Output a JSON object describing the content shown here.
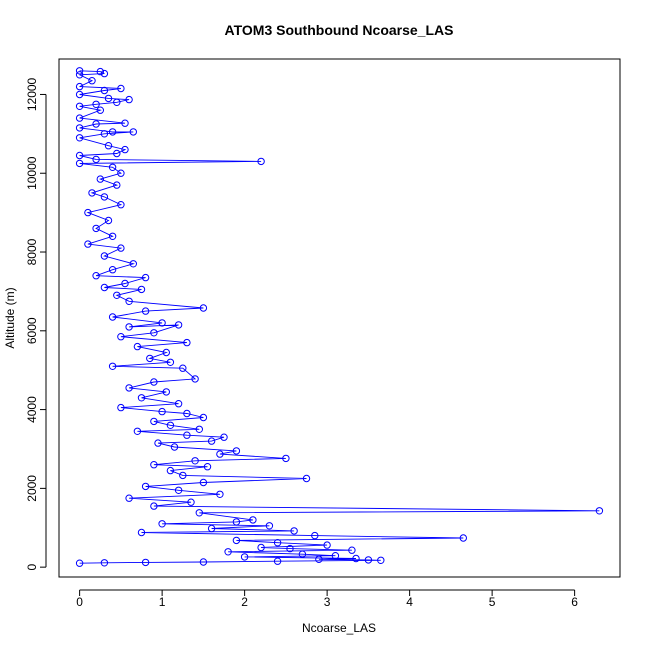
{
  "chart_data": {
    "type": "scatter",
    "title": "ATOM3 Southbound Ncoarse_LAS",
    "xlabel": "Ncoarse_LAS",
    "ylabel": "Altitude (m)",
    "xlim": [
      -0.25,
      6.55
    ],
    "ylim": [
      -250,
      12900
    ],
    "x_ticks": [
      0,
      1,
      2,
      3,
      4,
      5,
      6
    ],
    "y_ticks": [
      0,
      2000,
      4000,
      6000,
      8000,
      10000,
      12000
    ],
    "grid": false,
    "legend": "none",
    "series": [
      {
        "style": "points connected by lines",
        "color": "#0000ff",
        "points": [
          [
            0.0,
            12600
          ],
          [
            0.25,
            12580
          ],
          [
            0.3,
            12530
          ],
          [
            0.0,
            12500
          ],
          [
            0.15,
            12350
          ],
          [
            0.0,
            12200
          ],
          [
            0.5,
            12150
          ],
          [
            0.3,
            12100
          ],
          [
            0.0,
            12000
          ],
          [
            0.35,
            11900
          ],
          [
            0.6,
            11870
          ],
          [
            0.45,
            11800
          ],
          [
            0.2,
            11750
          ],
          [
            0.0,
            11700
          ],
          [
            0.25,
            11600
          ],
          [
            0.0,
            11400
          ],
          [
            0.55,
            11270
          ],
          [
            0.2,
            11250
          ],
          [
            0.0,
            11150
          ],
          [
            0.4,
            11050
          ],
          [
            0.65,
            11050
          ],
          [
            0.3,
            11000
          ],
          [
            0.0,
            10900
          ],
          [
            0.35,
            10700
          ],
          [
            0.55,
            10600
          ],
          [
            0.45,
            10500
          ],
          [
            0.0,
            10450
          ],
          [
            0.2,
            10350
          ],
          [
            2.2,
            10300
          ],
          [
            0.0,
            10250
          ],
          [
            0.4,
            10150
          ],
          [
            0.5,
            10000
          ],
          [
            0.25,
            9850
          ],
          [
            0.45,
            9700
          ],
          [
            0.15,
            9500
          ],
          [
            0.3,
            9400
          ],
          [
            0.5,
            9200
          ],
          [
            0.1,
            9000
          ],
          [
            0.35,
            8800
          ],
          [
            0.2,
            8600
          ],
          [
            0.4,
            8400
          ],
          [
            0.1,
            8200
          ],
          [
            0.5,
            8100
          ],
          [
            0.3,
            7900
          ],
          [
            0.65,
            7700
          ],
          [
            0.4,
            7550
          ],
          [
            0.2,
            7400
          ],
          [
            0.8,
            7350
          ],
          [
            0.55,
            7200
          ],
          [
            0.3,
            7100
          ],
          [
            0.75,
            7050
          ],
          [
            0.45,
            6900
          ],
          [
            0.6,
            6750
          ],
          [
            1.5,
            6580
          ],
          [
            0.8,
            6500
          ],
          [
            0.4,
            6350
          ],
          [
            1.0,
            6200
          ],
          [
            0.6,
            6100
          ],
          [
            1.2,
            6150
          ],
          [
            0.9,
            5950
          ],
          [
            0.5,
            5850
          ],
          [
            1.3,
            5700
          ],
          [
            0.7,
            5600
          ],
          [
            1.05,
            5450
          ],
          [
            0.85,
            5300
          ],
          [
            1.1,
            5200
          ],
          [
            0.4,
            5100
          ],
          [
            1.25,
            5050
          ],
          [
            1.4,
            4780
          ],
          [
            0.9,
            4700
          ],
          [
            0.6,
            4550
          ],
          [
            1.05,
            4450
          ],
          [
            0.75,
            4300
          ],
          [
            1.2,
            4150
          ],
          [
            0.5,
            4050
          ],
          [
            1.0,
            3950
          ],
          [
            1.3,
            3900
          ],
          [
            1.5,
            3800
          ],
          [
            0.9,
            3700
          ],
          [
            1.1,
            3600
          ],
          [
            1.45,
            3500
          ],
          [
            0.7,
            3450
          ],
          [
            1.3,
            3350
          ],
          [
            1.75,
            3300
          ],
          [
            1.6,
            3200
          ],
          [
            0.95,
            3150
          ],
          [
            1.15,
            3050
          ],
          [
            1.9,
            2950
          ],
          [
            1.7,
            2870
          ],
          [
            2.5,
            2760
          ],
          [
            1.4,
            2700
          ],
          [
            0.9,
            2600
          ],
          [
            1.55,
            2550
          ],
          [
            1.1,
            2450
          ],
          [
            1.25,
            2330
          ],
          [
            2.75,
            2250
          ],
          [
            1.5,
            2150
          ],
          [
            0.8,
            2050
          ],
          [
            1.2,
            1950
          ],
          [
            1.7,
            1850
          ],
          [
            0.6,
            1750
          ],
          [
            1.35,
            1650
          ],
          [
            0.9,
            1550
          ],
          [
            6.3,
            1430
          ],
          [
            1.45,
            1380
          ],
          [
            2.1,
            1200
          ],
          [
            1.9,
            1150
          ],
          [
            1.0,
            1100
          ],
          [
            2.3,
            1050
          ],
          [
            1.6,
            980
          ],
          [
            2.6,
            920
          ],
          [
            0.75,
            880
          ],
          [
            2.85,
            800
          ],
          [
            4.65,
            740
          ],
          [
            1.9,
            680
          ],
          [
            2.4,
            620
          ],
          [
            3.0,
            560
          ],
          [
            2.2,
            500
          ],
          [
            2.55,
            470
          ],
          [
            3.3,
            430
          ],
          [
            1.8,
            390
          ],
          [
            2.7,
            330
          ],
          [
            3.1,
            290
          ],
          [
            2.0,
            260
          ],
          [
            3.35,
            220
          ],
          [
            2.9,
            200
          ],
          [
            3.5,
            185
          ],
          [
            3.65,
            175
          ],
          [
            2.4,
            150
          ],
          [
            1.5,
            130
          ],
          [
            0.8,
            120
          ],
          [
            0.3,
            110
          ],
          [
            0.0,
            100
          ]
        ]
      }
    ]
  }
}
